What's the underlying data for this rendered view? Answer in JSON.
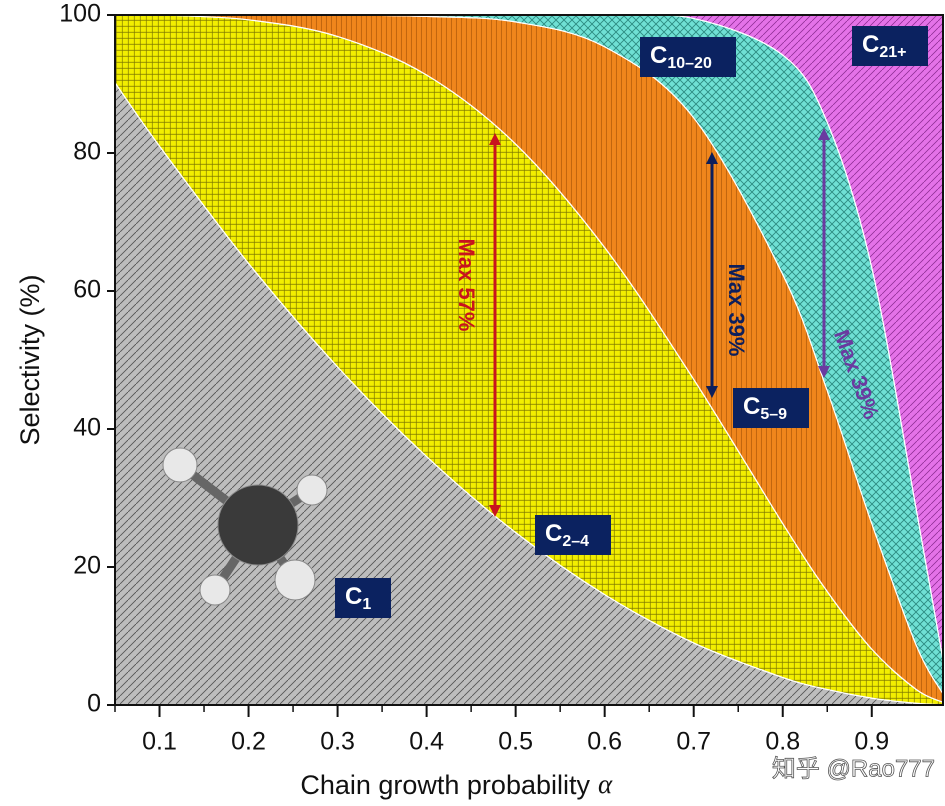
{
  "chart_data": {
    "type": "stacked-area",
    "xlabel": "Chain growth probability",
    "xlabel_symbol": "α",
    "ylabel": "Selectivity (%)",
    "x": [
      0.05,
      0.1,
      0.2,
      0.3,
      0.4,
      0.5,
      0.6,
      0.7,
      0.8,
      0.85,
      0.9,
      0.95,
      0.98
    ],
    "series": [
      {
        "name": "C",
        "sub": "1",
        "color": "#bdbdbd",
        "values": [
          90.2,
          81.0,
          64.0,
          49.0,
          36.0,
          25.0,
          16.0,
          9.0,
          4.0,
          2.25,
          1.0,
          0.25,
          0.04
        ]
      },
      {
        "name": "C",
        "sub": "2–4",
        "color": "#f2ee00",
        "values": [
          9.8,
          19.0,
          35.3,
          47.9,
          55.3,
          56.3,
          50.3,
          38.2,
          22.3,
          14.2,
          7.1,
          2.0,
          0.35
        ]
      },
      {
        "name": "C",
        "sub": "5–9",
        "color": "#f0861c",
        "values": [
          0,
          0.05,
          0.7,
          3.1,
          8.5,
          17.7,
          29.1,
          37.9,
          36.1,
          29.1,
          18.2,
          6.4,
          1.22
        ]
      },
      {
        "name": "C",
        "sub": "10–20",
        "color": "#6fe0d4",
        "values": [
          0,
          0,
          0,
          0,
          0.2,
          1.1,
          4.6,
          14.4,
          31.8,
          38.9,
          37.1,
          19.7,
          4.93
        ]
      },
      {
        "name": "C",
        "sub": "21+",
        "color": "#e472e8",
        "values": [
          0,
          0,
          0,
          0,
          0,
          0,
          0,
          0.6,
          5.8,
          15.5,
          36.5,
          71.7,
          93.46
        ]
      }
    ],
    "annotations": [
      {
        "text": "Max 57%",
        "color": "#c8141e"
      },
      {
        "text": "Max 39%",
        "color": "#0d1f5c"
      },
      {
        "text": "Max 39%",
        "color": "#6a3aa0"
      }
    ],
    "watermark": "知乎 @Rao777",
    "xlim": [
      0.05,
      0.98
    ],
    "ylim": [
      0,
      100
    ],
    "xticks": [
      0.1,
      0.2,
      0.3,
      0.4,
      0.5,
      0.6,
      0.7,
      0.8,
      0.9
    ],
    "yticks": [
      0,
      20,
      40,
      60,
      80,
      100
    ]
  }
}
